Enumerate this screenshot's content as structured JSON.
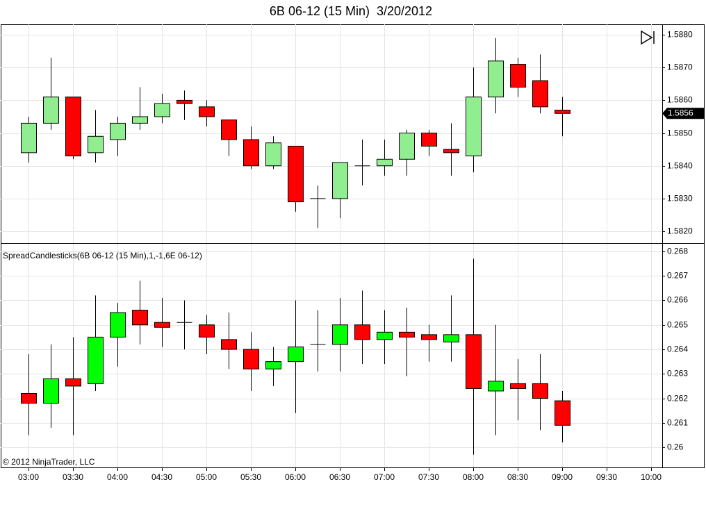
{
  "chart_data": [
    {
      "type": "candlestick",
      "title": "6B 06-12 (15 Min)  3/20/2012",
      "open": [
        1.5844,
        1.5853,
        1.5861,
        1.5844,
        1.5848,
        1.5853,
        1.5855,
        1.586,
        1.5858,
        1.5854,
        1.5848,
        1.584,
        1.5846,
        1.583,
        1.583,
        1.584,
        1.584,
        1.5842,
        1.585,
        1.5845,
        1.5843,
        1.5861,
        1.5871,
        1.5866,
        1.5857,
        null,
        null,
        null,
        null
      ],
      "high": [
        1.5855,
        1.5873,
        1.5861,
        1.5857,
        1.5855,
        1.5864,
        1.5862,
        1.5863,
        1.586,
        1.5854,
        1.5852,
        1.5849,
        1.5846,
        1.5834,
        1.5841,
        1.5848,
        1.5848,
        1.5851,
        1.5851,
        1.5853,
        1.587,
        1.5879,
        1.5873,
        1.5874,
        1.5861,
        null,
        null,
        null,
        null
      ],
      "low": [
        1.5841,
        1.5851,
        1.5842,
        1.5841,
        1.5843,
        1.5851,
        1.5853,
        1.5854,
        1.5852,
        1.5843,
        1.5839,
        1.5839,
        1.5826,
        1.5821,
        1.5824,
        1.5834,
        1.5837,
        1.5837,
        1.5843,
        1.5837,
        1.5838,
        1.5856,
        1.5861,
        1.5856,
        1.5849,
        null,
        null,
        null,
        null
      ],
      "close": [
        1.5853,
        1.5861,
        1.5843,
        1.5849,
        1.5853,
        1.5855,
        1.5859,
        1.5859,
        1.5855,
        1.5848,
        1.584,
        1.5847,
        1.5829,
        1.583,
        1.5841,
        1.584,
        1.5842,
        1.585,
        1.5846,
        1.5844,
        1.5861,
        1.5872,
        1.5864,
        1.5858,
        1.5856,
        null,
        null,
        null,
        null
      ],
      "up_color": "#90ee90",
      "down_color": "#ff0000",
      "ylim": [
        1.58164,
        1.58832
      ],
      "yticks": [
        {
          "value": 1.588,
          "label": "1.5880"
        },
        {
          "value": 1.587,
          "label": "1.5870"
        },
        {
          "value": 1.586,
          "label": "1.5860"
        },
        {
          "value": 1.585,
          "label": "1.5850"
        },
        {
          "value": 1.584,
          "label": "1.5840"
        },
        {
          "value": 1.583,
          "label": "1.5830"
        },
        {
          "value": 1.582,
          "label": "1.5820"
        }
      ],
      "last_price": 1.5856,
      "grid": true
    },
    {
      "type": "candlestick",
      "label": "SpreadCandlesticks(6B 06-12 (15 Min),1,-1,6E 06-12)",
      "annotation": "© 2012 NinjaTrader, LLC",
      "categories": [
        "03:00",
        null,
        "03:30",
        null,
        "04:00",
        null,
        "04:30",
        null,
        "05:00",
        null,
        "05:30",
        null,
        "06:00",
        null,
        "06:30",
        null,
        "07:00",
        null,
        "07:30",
        null,
        "08:00",
        null,
        "08:30",
        null,
        "09:00",
        null,
        "09:30",
        null,
        "10:00"
      ],
      "open": [
        0.2622,
        0.2618,
        0.2628,
        0.2626,
        0.2645,
        0.2656,
        0.2651,
        0.2651,
        0.265,
        0.2644,
        0.264,
        0.2632,
        0.2635,
        0.2642,
        0.2642,
        0.265,
        0.2644,
        0.2647,
        0.2646,
        0.2643,
        0.2646,
        0.2623,
        0.2626,
        0.2626,
        0.2619,
        null,
        null,
        null,
        null
      ],
      "high": [
        0.2638,
        0.2642,
        0.2645,
        0.2662,
        0.2659,
        0.2668,
        0.2661,
        0.266,
        0.2654,
        0.2655,
        0.2647,
        0.2641,
        0.266,
        0.2656,
        0.2661,
        0.2664,
        0.2656,
        0.2657,
        0.265,
        0.2662,
        0.2677,
        0.265,
        0.2636,
        0.2638,
        0.2623,
        null,
        null,
        null,
        null
      ],
      "low": [
        0.2605,
        0.2608,
        0.2605,
        0.2623,
        0.2633,
        0.2642,
        0.2641,
        0.264,
        0.2638,
        0.2632,
        0.2623,
        0.2625,
        0.2614,
        0.2631,
        0.2631,
        0.2634,
        0.2634,
        0.2629,
        0.2635,
        0.2635,
        0.2597,
        0.2605,
        0.2611,
        0.2607,
        0.2602,
        null,
        null,
        null,
        null
      ],
      "close": [
        0.2618,
        0.2628,
        0.2625,
        0.2645,
        0.2655,
        0.265,
        0.2649,
        0.2651,
        0.2645,
        0.264,
        0.2632,
        0.2635,
        0.2641,
        0.2642,
        0.265,
        0.2644,
        0.2647,
        0.2645,
        0.2644,
        0.2646,
        0.2624,
        0.2627,
        0.2624,
        0.262,
        0.2609,
        null,
        null,
        null,
        null
      ],
      "up_color": "#00ff00",
      "down_color": "#ff0000",
      "ylim": [
        0.25918,
        0.26831
      ],
      "yticks": [
        0.268,
        0.267,
        0.266,
        0.265,
        0.264,
        0.263,
        0.262,
        0.261,
        0.26
      ],
      "grid": true
    }
  ]
}
